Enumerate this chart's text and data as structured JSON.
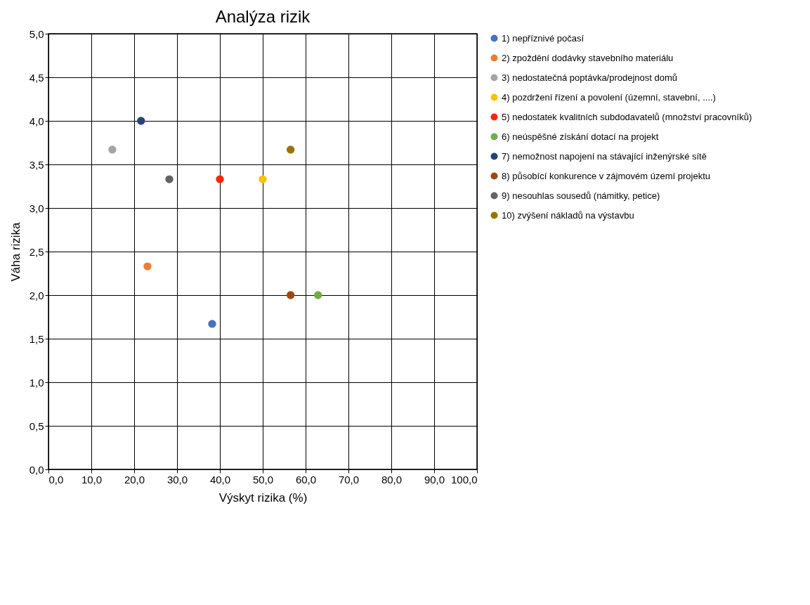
{
  "chart_data": {
    "type": "scatter",
    "title": "Analýza rizik",
    "xlabel": "Výskyt rizika (%)",
    "ylabel": "Váha rizika",
    "xlim": [
      0,
      100
    ],
    "ylim": [
      0,
      5
    ],
    "xticks": [
      {
        "value": 0,
        "label": "0,0"
      },
      {
        "value": 10,
        "label": "10,0"
      },
      {
        "value": 20,
        "label": "20,0"
      },
      {
        "value": 30,
        "label": "30,0"
      },
      {
        "value": 40,
        "label": "40,0"
      },
      {
        "value": 50,
        "label": "50,0"
      },
      {
        "value": 60,
        "label": "60,0"
      },
      {
        "value": 70,
        "label": "70,0"
      },
      {
        "value": 80,
        "label": "80,0"
      },
      {
        "value": 90,
        "label": "90,0"
      },
      {
        "value": 100,
        "label": "100,0"
      }
    ],
    "yticks": [
      {
        "value": 0,
        "label": "0,0"
      },
      {
        "value": 0.5,
        "label": "0,5"
      },
      {
        "value": 1,
        "label": "1,0"
      },
      {
        "value": 1.5,
        "label": "1,5"
      },
      {
        "value": 2,
        "label": "2,0"
      },
      {
        "value": 2.5,
        "label": "2,5"
      },
      {
        "value": 3,
        "label": "3,0"
      },
      {
        "value": 3.5,
        "label": "3,5"
      },
      {
        "value": 4,
        "label": "4,0"
      },
      {
        "value": 4.5,
        "label": "4,5"
      },
      {
        "value": 5,
        "label": "5,0"
      }
    ],
    "grid": true,
    "legend": "right",
    "marker": "circle",
    "series": [
      {
        "name": "1) nepříznivé počasí",
        "color": "#4472c4",
        "x": [
          38.2
        ],
        "values": [
          1.67
        ]
      },
      {
        "name": "2) zpoždění dodávky stavebního materiálu",
        "color": "#ed7d31",
        "x": [
          23.1
        ],
        "values": [
          2.33
        ]
      },
      {
        "name": "3) nedostatečná poptávka/prodejnost domů",
        "color": "#a5a5a5",
        "x": [
          14.9
        ],
        "values": [
          3.67
        ]
      },
      {
        "name": "4) pozdržení řízení a povolení (územní, stavební, ....)",
        "color": "#ffc000",
        "x": [
          50
        ],
        "values": [
          3.33
        ]
      },
      {
        "name": "5) nedostatek kvalitních subdodavatelů (množství pracovníků)",
        "color": "#ff2600",
        "x": [
          40
        ],
        "values": [
          3.33
        ]
      },
      {
        "name": "6) neúspěšné získání dotací na projekt",
        "color": "#70ad47",
        "x": [
          62.9
        ],
        "values": [
          2
        ]
      },
      {
        "name": "7) nemožnost napojení na stávající inženýrské sítě",
        "color": "#264478",
        "x": [
          21.6
        ],
        "values": [
          4
        ]
      },
      {
        "name": "8) působící konkurence v zájmovém území projektu",
        "color": "#9e480e",
        "x": [
          56.5
        ],
        "values": [
          2
        ]
      },
      {
        "name": "9) nesouhlas sousedů (námitky, petice)",
        "color": "#636363",
        "x": [
          28.2
        ],
        "values": [
          3.33
        ]
      },
      {
        "name": "10) zvýšení nákladů na výstavbu",
        "color": "#997300",
        "x": [
          56.5
        ],
        "values": [
          3.67
        ]
      }
    ]
  }
}
